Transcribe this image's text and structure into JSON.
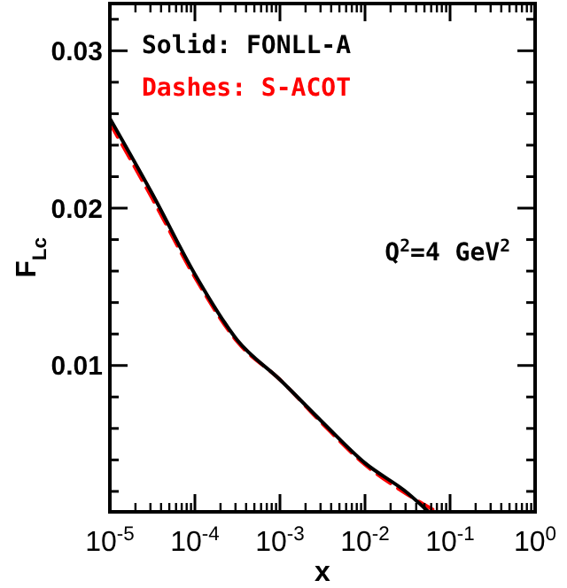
{
  "chart_data": {
    "type": "line",
    "xlabel": "x",
    "ylabel": "F$_{Lc}$",
    "log": "x",
    "xlim": [
      1e-05,
      1
    ],
    "xticks": [
      {
        "value": 1e-05,
        "label": "10$^{-5}$"
      },
      {
        "value": 0.0001,
        "label": "10$^{-4}$"
      },
      {
        "value": 0.001,
        "label": "10$^{-3}$"
      },
      {
        "value": 0.01,
        "label": "10$^{-2}$"
      },
      {
        "value": 0.1,
        "label": "10$^{-1}$"
      },
      {
        "value": 1,
        "label": "10$^{0}$"
      }
    ],
    "ylim": [
      0.0007,
      0.033
    ],
    "yticks": [
      {
        "value": 0.002,
        "label": null
      },
      {
        "value": 0.004,
        "label": null
      },
      {
        "value": 0.006,
        "label": null
      },
      {
        "value": 0.008,
        "label": null
      },
      0.01,
      {
        "value": 0.012,
        "label": null
      },
      {
        "value": 0.014,
        "label": null
      },
      {
        "value": 0.016,
        "label": null
      },
      {
        "value": 0.018,
        "label": null
      },
      0.02,
      {
        "value": 0.022,
        "label": null
      },
      {
        "value": 0.024,
        "label": null
      },
      {
        "value": 0.026,
        "label": null
      },
      {
        "value": 0.028,
        "label": null
      },
      0.03,
      {
        "value": 0.032,
        "label": null
      }
    ],
    "legend": "top left",
    "annotations": [
      "Q$^{2}$=4 GeV$^{2}$"
    ],
    "series": [
      {
        "name": "Solid: FONLL-A",
        "color": "#000000",
        "line_style": "solid",
        "x": [
          1e-05,
          3.16e-05,
          0.0001,
          0.000316,
          0.001,
          0.00316,
          0.01,
          0.0316,
          0.056
        ],
        "values": [
          0.0257,
          0.0209,
          0.0158,
          0.0116,
          0.0091,
          0.0064,
          0.0038,
          0.0019,
          0.0007
        ]
      },
      {
        "name": "Dashes: S-ACOT",
        "color": "#ff0000",
        "line_style": "dashed",
        "x": [
          1e-05,
          3.16e-05,
          0.0001,
          0.000316,
          0.001,
          0.00316,
          0.01,
          0.0316,
          0.07
        ],
        "values": [
          0.0254,
          0.0206,
          0.0156,
          0.0115,
          0.0091,
          0.0063,
          0.0037,
          0.0018,
          0.0007
        ]
      }
    ]
  }
}
